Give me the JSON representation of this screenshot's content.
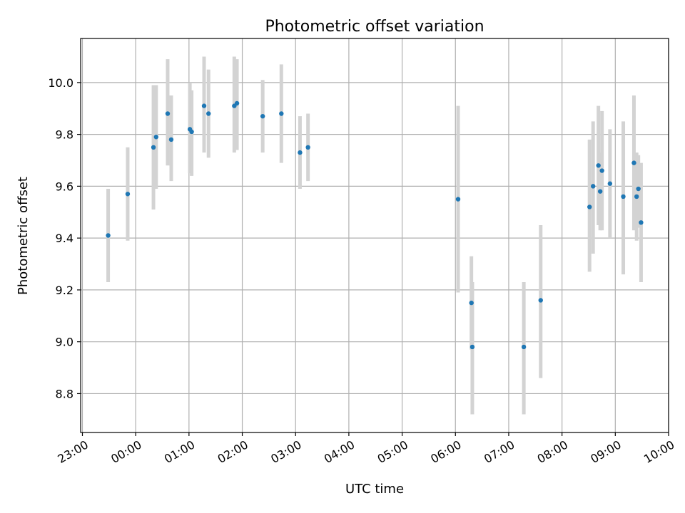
{
  "chart_data": {
    "type": "scatter",
    "title": "Photometric offset variation",
    "xlabel": "UTC time",
    "ylabel": "Photometric offset",
    "x_ticks": [
      "23:00",
      "00:00",
      "01:00",
      "02:00",
      "03:00",
      "04:00",
      "05:00",
      "06:00",
      "07:00",
      "08:00",
      "09:00",
      "10:00"
    ],
    "y_ticks": [
      "8.8",
      "9.0",
      "9.2",
      "9.4",
      "9.6",
      "9.8",
      "10.0"
    ],
    "xlim": [
      "22:58",
      "10:00"
    ],
    "ylim": [
      8.65,
      10.17
    ],
    "grid": true,
    "colors": {
      "points": "#1f77b4",
      "errorbars": "#d3d3d3",
      "grid": "#b0b0b0"
    },
    "points": [
      {
        "t": "23:29",
        "y": 9.41,
        "lo": 9.23,
        "hi": 9.59
      },
      {
        "t": "23:51",
        "y": 9.57,
        "lo": 9.39,
        "hi": 9.75
      },
      {
        "t": "00:20",
        "y": 9.75,
        "lo": 9.51,
        "hi": 9.99
      },
      {
        "t": "00:23",
        "y": 9.79,
        "lo": 9.59,
        "hi": 9.99
      },
      {
        "t": "00:36",
        "y": 9.88,
        "lo": 9.68,
        "hi": 10.09
      },
      {
        "t": "00:40",
        "y": 9.78,
        "lo": 9.62,
        "hi": 9.95
      },
      {
        "t": "01:01",
        "y": 9.82,
        "lo": 9.65,
        "hi": 10.0
      },
      {
        "t": "01:03",
        "y": 9.81,
        "lo": 9.64,
        "hi": 9.97
      },
      {
        "t": "01:17",
        "y": 9.91,
        "lo": 9.73,
        "hi": 10.1
      },
      {
        "t": "01:22",
        "y": 9.88,
        "lo": 9.71,
        "hi": 10.05
      },
      {
        "t": "01:51",
        "y": 9.91,
        "lo": 9.73,
        "hi": 10.1
      },
      {
        "t": "01:54",
        "y": 9.92,
        "lo": 9.74,
        "hi": 10.09
      },
      {
        "t": "02:23",
        "y": 9.87,
        "lo": 9.73,
        "hi": 10.01
      },
      {
        "t": "02:44",
        "y": 9.88,
        "lo": 9.69,
        "hi": 10.07
      },
      {
        "t": "03:05",
        "y": 9.73,
        "lo": 9.59,
        "hi": 9.87
      },
      {
        "t": "03:14",
        "y": 9.75,
        "lo": 9.62,
        "hi": 9.88
      },
      {
        "t": "06:03",
        "y": 9.55,
        "lo": 9.19,
        "hi": 9.91
      },
      {
        "t": "06:18",
        "y": 9.15,
        "lo": 8.97,
        "hi": 9.33
      },
      {
        "t": "06:19",
        "y": 8.98,
        "lo": 8.72,
        "hi": 9.23
      },
      {
        "t": "07:17",
        "y": 8.98,
        "lo": 8.72,
        "hi": 9.23
      },
      {
        "t": "07:36",
        "y": 9.16,
        "lo": 8.86,
        "hi": 9.45
      },
      {
        "t": "08:31",
        "y": 9.52,
        "lo": 9.27,
        "hi": 9.78
      },
      {
        "t": "08:35",
        "y": 9.6,
        "lo": 9.34,
        "hi": 9.85
      },
      {
        "t": "08:41",
        "y": 9.68,
        "lo": 9.45,
        "hi": 9.91
      },
      {
        "t": "08:43",
        "y": 9.58,
        "lo": 9.43,
        "hi": 9.73
      },
      {
        "t": "08:45",
        "y": 9.66,
        "lo": 9.43,
        "hi": 9.89
      },
      {
        "t": "08:54",
        "y": 9.61,
        "lo": 9.4,
        "hi": 9.82
      },
      {
        "t": "09:09",
        "y": 9.56,
        "lo": 9.26,
        "hi": 9.85
      },
      {
        "t": "09:21",
        "y": 9.69,
        "lo": 9.43,
        "hi": 9.95
      },
      {
        "t": "09:24",
        "y": 9.56,
        "lo": 9.39,
        "hi": 9.73
      },
      {
        "t": "09:26",
        "y": 9.59,
        "lo": 9.44,
        "hi": 9.72
      },
      {
        "t": "09:29",
        "y": 9.46,
        "lo": 9.23,
        "hi": 9.69
      }
    ]
  }
}
